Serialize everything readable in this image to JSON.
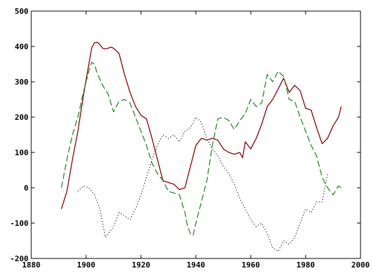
{
  "chart_data": {
    "type": "line",
    "title": "",
    "xlabel": "",
    "ylabel": "",
    "xlim": [
      1880,
      2000
    ],
    "ylim": [
      -200,
      500
    ],
    "xticks": [
      1880,
      1900,
      1920,
      1940,
      1960,
      1980,
      2000
    ],
    "yticks": [
      -200,
      -100,
      0,
      100,
      200,
      300,
      400,
      500
    ],
    "grid": false,
    "legend": "none",
    "series": [
      {
        "color": "#8b0000",
        "style": "solid",
        "x": [
          1891,
          1893,
          1895,
          1897,
          1899,
          1901,
          1902,
          1903,
          1904,
          1905,
          1906,
          1907,
          1908,
          1909,
          1910,
          1912,
          1914,
          1916,
          1918,
          1920,
          1922,
          1924,
          1926,
          1928,
          1930,
          1932,
          1934,
          1936,
          1938,
          1940,
          1942,
          1944,
          1946,
          1948,
          1950,
          1952,
          1954,
          1956,
          1957,
          1958,
          1960,
          1962,
          1964,
          1966,
          1968,
          1970,
          1972,
          1974,
          1976,
          1978,
          1980,
          1982,
          1984,
          1986,
          1988,
          1990,
          1992,
          1993
        ],
        "values": [
          -60,
          -10,
          80,
          160,
          260,
          350,
          395,
          410,
          412,
          405,
          395,
          393,
          395,
          398,
          395,
          380,
          320,
          270,
          230,
          205,
          195,
          140,
          80,
          20,
          15,
          10,
          -5,
          0,
          60,
          120,
          140,
          135,
          140,
          135,
          110,
          100,
          95,
          100,
          85,
          130,
          110,
          140,
          180,
          230,
          250,
          280,
          310,
          270,
          290,
          275,
          225,
          220,
          170,
          125,
          140,
          175,
          200,
          230
        ]
      },
      {
        "color": "#228b22",
        "style": "dashed",
        "x": [
          1891,
          1893,
          1895,
          1897,
          1899,
          1901,
          1902,
          1903,
          1904,
          1906,
          1908,
          1910,
          1912,
          1914,
          1916,
          1918,
          1920,
          1922,
          1924,
          1926,
          1928,
          1930,
          1932,
          1934,
          1936,
          1937,
          1938,
          1939,
          1940,
          1942,
          1944,
          1946,
          1948,
          1950,
          1952,
          1954,
          1956,
          1958,
          1960,
          1962,
          1964,
          1966,
          1968,
          1970,
          1972,
          1974,
          1976,
          1978,
          1980,
          1982,
          1984,
          1986,
          1988,
          1990,
          1992,
          1993
        ],
        "values": [
          0,
          80,
          150,
          200,
          270,
          330,
          355,
          350,
          325,
          290,
          265,
          215,
          245,
          250,
          240,
          200,
          160,
          120,
          70,
          40,
          20,
          -10,
          -15,
          -20,
          -70,
          -110,
          -130,
          -135,
          -100,
          -40,
          20,
          120,
          195,
          200,
          190,
          165,
          190,
          210,
          250,
          230,
          240,
          320,
          300,
          330,
          315,
          250,
          245,
          200,
          160,
          120,
          90,
          30,
          0,
          -20,
          5,
          0
        ]
      },
      {
        "color": "#000000",
        "style": "dotted",
        "x": [
          1897,
          1899,
          1901,
          1903,
          1905,
          1906,
          1907,
          1908,
          1909,
          1910,
          1912,
          1914,
          1916,
          1918,
          1920,
          1922,
          1924,
          1926,
          1928,
          1930,
          1932,
          1934,
          1936,
          1938,
          1940,
          1942,
          1944,
          1946,
          1948,
          1950,
          1952,
          1954,
          1956,
          1958,
          1960,
          1962,
          1964,
          1966,
          1968,
          1970,
          1972,
          1974,
          1976,
          1978,
          1980,
          1982,
          1984,
          1986,
          1988
        ],
        "values": [
          -10,
          5,
          0,
          -20,
          -60,
          -100,
          -140,
          -130,
          -120,
          -110,
          -70,
          -80,
          -90,
          -60,
          -20,
          30,
          80,
          120,
          150,
          140,
          150,
          130,
          160,
          170,
          200,
          185,
          140,
          110,
          90,
          60,
          40,
          10,
          -30,
          -60,
          -90,
          -110,
          -100,
          -130,
          -170,
          -180,
          -150,
          -160,
          -140,
          -100,
          -60,
          -70,
          -40,
          -40,
          40
        ]
      }
    ]
  }
}
